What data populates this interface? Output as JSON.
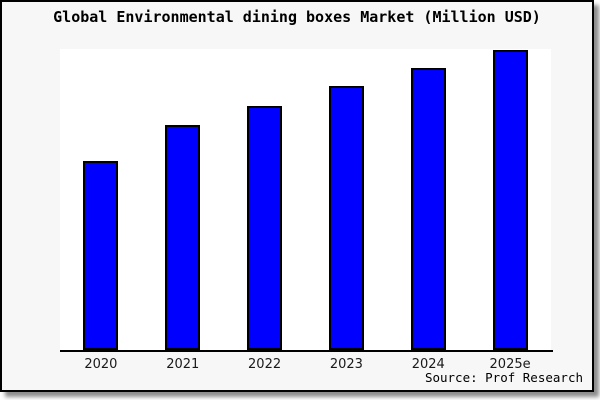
{
  "colors": {
    "bar_fill": "#0000FF",
    "bar_border": "#000000",
    "frame_bg": "#f7f7f7",
    "plot_bg": "#ffffff",
    "axis": "#000000",
    "frame_border": "#000000"
  },
  "chart_data": {
    "type": "bar",
    "title": "Global Environmental dining boxes Market (Million USD)",
    "categories": [
      "2020",
      "2021",
      "2022",
      "2023",
      "2024",
      "2025e"
    ],
    "values": [
      63,
      75,
      81.5,
      88,
      94,
      100
    ],
    "value_basis": "relative index estimated from bar heights; no y-axis scale shown; 2025e = 100",
    "xlabel": "",
    "ylabel": "",
    "ylim": [
      0,
      100
    ],
    "grid": false,
    "legend": null,
    "source": "Source: Prof Research"
  }
}
